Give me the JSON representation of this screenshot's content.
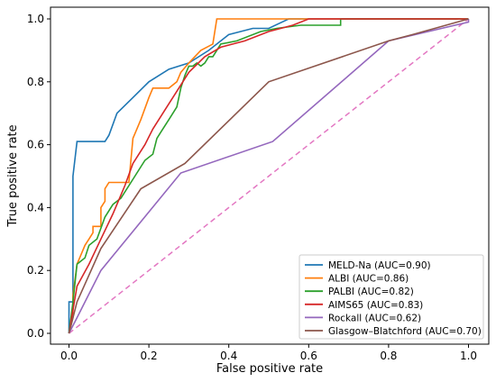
{
  "chart_data": {
    "type": "line",
    "xlabel": "False positive rate",
    "ylabel": "True positive rate",
    "xlim": [
      0.0,
      1.0
    ],
    "ylim": [
      0.0,
      1.0
    ],
    "x_ticks": [
      "0.0",
      "0.2",
      "0.4",
      "0.6",
      "0.8",
      "1.0"
    ],
    "y_ticks": [
      "0.0",
      "0.2",
      "0.4",
      "0.6",
      "0.8",
      "1.0"
    ],
    "grid": false,
    "legend_position": "bottom-right",
    "series": [
      {
        "name": "MELD-Na (AUC=0.90)",
        "color": "#1f77b4",
        "points": [
          [
            0.0,
            0.0
          ],
          [
            0.0,
            0.1
          ],
          [
            0.01,
            0.1
          ],
          [
            0.01,
            0.5
          ],
          [
            0.02,
            0.61
          ],
          [
            0.09,
            0.61
          ],
          [
            0.1,
            0.63
          ],
          [
            0.12,
            0.7
          ],
          [
            0.16,
            0.75
          ],
          [
            0.2,
            0.8
          ],
          [
            0.25,
            0.84
          ],
          [
            0.3,
            0.86
          ],
          [
            0.35,
            0.9
          ],
          [
            0.4,
            0.95
          ],
          [
            0.46,
            0.97
          ],
          [
            0.5,
            0.97
          ],
          [
            0.55,
            1.0
          ],
          [
            1.0,
            1.0
          ]
        ]
      },
      {
        "name": "ALBI (AUC=0.86)",
        "color": "#ff7f0e",
        "points": [
          [
            0.0,
            0.0
          ],
          [
            0.01,
            0.05
          ],
          [
            0.01,
            0.12
          ],
          [
            0.02,
            0.22
          ],
          [
            0.03,
            0.25
          ],
          [
            0.04,
            0.28
          ],
          [
            0.05,
            0.3
          ],
          [
            0.06,
            0.32
          ],
          [
            0.06,
            0.34
          ],
          [
            0.08,
            0.34
          ],
          [
            0.08,
            0.4
          ],
          [
            0.09,
            0.42
          ],
          [
            0.09,
            0.46
          ],
          [
            0.1,
            0.48
          ],
          [
            0.15,
            0.48
          ],
          [
            0.16,
            0.62
          ],
          [
            0.17,
            0.65
          ],
          [
            0.18,
            0.68
          ],
          [
            0.2,
            0.75
          ],
          [
            0.21,
            0.78
          ],
          [
            0.25,
            0.78
          ],
          [
            0.27,
            0.8
          ],
          [
            0.28,
            0.83
          ],
          [
            0.3,
            0.86
          ],
          [
            0.33,
            0.9
          ],
          [
            0.36,
            0.92
          ],
          [
            0.37,
            1.0
          ],
          [
            1.0,
            1.0
          ]
        ]
      },
      {
        "name": "PALBI (AUC=0.82)",
        "color": "#2ca02c",
        "points": [
          [
            0.0,
            0.0
          ],
          [
            0.01,
            0.1
          ],
          [
            0.02,
            0.22
          ],
          [
            0.04,
            0.24
          ],
          [
            0.05,
            0.28
          ],
          [
            0.07,
            0.3
          ],
          [
            0.09,
            0.37
          ],
          [
            0.11,
            0.41
          ],
          [
            0.13,
            0.43
          ],
          [
            0.16,
            0.49
          ],
          [
            0.19,
            0.55
          ],
          [
            0.21,
            0.57
          ],
          [
            0.22,
            0.62
          ],
          [
            0.23,
            0.64
          ],
          [
            0.25,
            0.68
          ],
          [
            0.27,
            0.72
          ],
          [
            0.28,
            0.78
          ],
          [
            0.29,
            0.82
          ],
          [
            0.3,
            0.85
          ],
          [
            0.31,
            0.85
          ],
          [
            0.32,
            0.86
          ],
          [
            0.33,
            0.85
          ],
          [
            0.34,
            0.86
          ],
          [
            0.35,
            0.88
          ],
          [
            0.36,
            0.88
          ],
          [
            0.38,
            0.92
          ],
          [
            0.42,
            0.93
          ],
          [
            0.48,
            0.96
          ],
          [
            0.52,
            0.97
          ],
          [
            0.58,
            0.98
          ],
          [
            0.68,
            0.98
          ],
          [
            0.68,
            1.0
          ],
          [
            1.0,
            1.0
          ]
        ]
      },
      {
        "name": "AIMS65 (AUC=0.83)",
        "color": "#d62728",
        "points": [
          [
            0.0,
            0.0
          ],
          [
            0.02,
            0.15
          ],
          [
            0.05,
            0.22
          ],
          [
            0.08,
            0.3
          ],
          [
            0.11,
            0.38
          ],
          [
            0.14,
            0.47
          ],
          [
            0.16,
            0.54
          ],
          [
            0.19,
            0.6
          ],
          [
            0.21,
            0.65
          ],
          [
            0.24,
            0.71
          ],
          [
            0.27,
            0.77
          ],
          [
            0.3,
            0.83
          ],
          [
            0.34,
            0.88
          ],
          [
            0.38,
            0.91
          ],
          [
            0.44,
            0.93
          ],
          [
            0.5,
            0.96
          ],
          [
            0.56,
            0.98
          ],
          [
            0.6,
            1.0
          ],
          [
            1.0,
            1.0
          ]
        ]
      },
      {
        "name": "Rockall (AUC=0.62)",
        "color": "#9467bd",
        "points": [
          [
            0.0,
            0.0
          ],
          [
            0.02,
            0.05
          ],
          [
            0.08,
            0.2
          ],
          [
            0.28,
            0.51
          ],
          [
            0.51,
            0.61
          ],
          [
            0.8,
            0.93
          ],
          [
            1.0,
            0.99
          ],
          [
            1.0,
            1.0
          ]
        ]
      },
      {
        "name": "Glasgow–Blatchford (AUC=0.70)",
        "color": "#8c564b",
        "points": [
          [
            0.0,
            0.0
          ],
          [
            0.02,
            0.1
          ],
          [
            0.08,
            0.27
          ],
          [
            0.18,
            0.46
          ],
          [
            0.29,
            0.54
          ],
          [
            0.5,
            0.8
          ],
          [
            0.8,
            0.93
          ],
          [
            0.86,
            0.95
          ],
          [
            1.0,
            1.0
          ]
        ]
      }
    ],
    "reference_line": {
      "color": "#e377c2",
      "style": "dashed",
      "points": [
        [
          0.0,
          0.0
        ],
        [
          1.0,
          1.0
        ]
      ]
    }
  }
}
